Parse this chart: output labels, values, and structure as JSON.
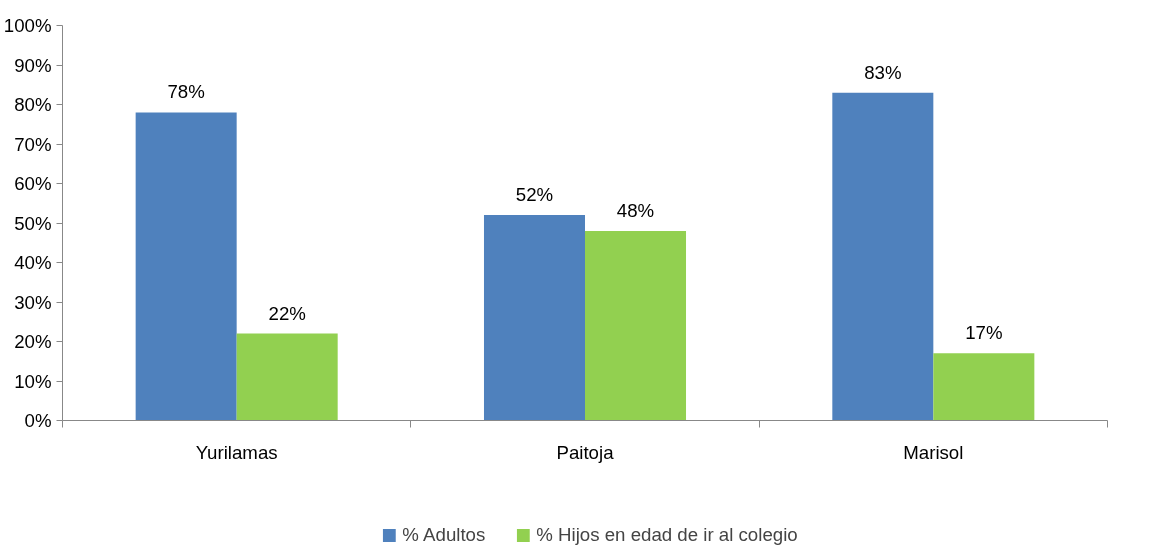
{
  "chart_data": {
    "type": "bar",
    "categories": [
      "Yurilamas",
      "Paitoja",
      "Marisol"
    ],
    "series": [
      {
        "name": "% Adultos",
        "color": "#4f81bd",
        "values": [
          78,
          52,
          83
        ],
        "value_labels": [
          "78%",
          "52%",
          "83%"
        ]
      },
      {
        "name": "% Hijos en edad de ir al colegio",
        "color": "#92d050",
        "values": [
          22,
          48,
          17
        ],
        "value_labels": [
          "22%",
          "48%",
          "17%"
        ]
      }
    ],
    "ylim": [
      0,
      100
    ],
    "yticks": [
      {
        "value": 0,
        "label": "0%"
      },
      {
        "value": 10,
        "label": "10%"
      },
      {
        "value": 20,
        "label": "20%"
      },
      {
        "value": 30,
        "label": "30%"
      },
      {
        "value": 40,
        "label": "40%"
      },
      {
        "value": 50,
        "label": "50%"
      },
      {
        "value": 60,
        "label": "60%"
      },
      {
        "value": 70,
        "label": "70%"
      },
      {
        "value": 80,
        "label": "80%"
      },
      {
        "value": 90,
        "label": "90%"
      },
      {
        "value": 100,
        "label": "100%"
      }
    ],
    "grid": false,
    "legend": "bottom"
  }
}
